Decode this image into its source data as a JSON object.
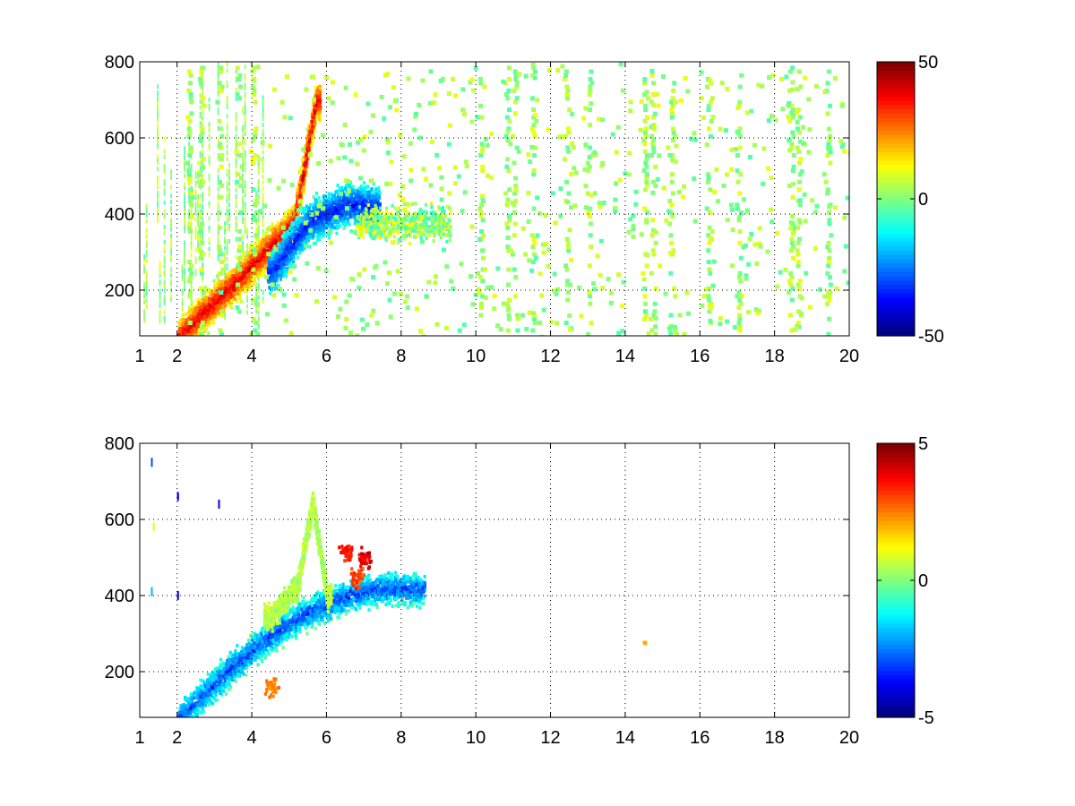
{
  "chart_data": [
    {
      "type": "heatmap",
      "title": "",
      "xlabel": "",
      "ylabel": "",
      "xlim": [
        1,
        20
      ],
      "ylim": [
        80,
        800
      ],
      "x_ticks": [
        1,
        2,
        4,
        6,
        8,
        10,
        12,
        14,
        16,
        18,
        20
      ],
      "y_ticks": [
        200,
        400,
        600,
        800
      ],
      "grid": true,
      "colormap": "jet",
      "colorbar": {
        "range": [
          -50,
          50
        ],
        "ticks": [
          -50,
          0,
          50
        ]
      },
      "pattern": {
        "ridge_x": [
          2.0,
          3.5,
          4.5,
          5.1,
          5.7
        ],
        "ridge_y": [
          80,
          220,
          320,
          380,
          700
        ],
        "ridge_peak_value": 40,
        "counter_ridge_x": [
          4.5,
          5.5,
          6.5,
          7.3
        ],
        "counter_ridge_y": [
          250,
          380,
          430,
          420
        ],
        "counter_ridge_value": -35,
        "scatter_stripes_x": [
          2.3,
          2.6,
          3.1,
          3.6,
          4.0,
          10.1,
          10.8,
          11.0,
          11.5,
          12.4,
          13.0,
          14.5,
          14.7,
          15.2,
          16.2,
          17.0,
          18.4,
          18.6,
          19.4
        ]
      }
    },
    {
      "type": "heatmap",
      "title": "",
      "xlabel": "",
      "ylabel": "",
      "xlim": [
        1,
        20
      ],
      "ylim": [
        80,
        800
      ],
      "x_ticks": [
        1,
        2,
        4,
        6,
        8,
        10,
        12,
        14,
        16,
        18,
        20
      ],
      "y_ticks": [
        200,
        400,
        600,
        800
      ],
      "grid": true,
      "colormap": "jet",
      "colorbar": {
        "range": [
          -5,
          5
        ],
        "ticks": [
          -5,
          0,
          5
        ]
      },
      "pattern": {
        "band_x": [
          2.0,
          3.5,
          4.5,
          5.5,
          6.5,
          7.2,
          8.5
        ],
        "band_y": [
          80,
          220,
          300,
          360,
          400,
          420,
          420
        ],
        "band_value": -3,
        "upper_branch_x": [
          4.5,
          5.2,
          5.6,
          6.0
        ],
        "upper_branch_y": [
          350,
          430,
          650,
          400
        ],
        "upper_branch_value": 0.5,
        "hot_spots": [
          [
            6.5,
            520,
            3.5
          ],
          [
            7.0,
            500,
            4
          ],
          [
            6.8,
            450,
            3
          ],
          [
            4.5,
            160,
            2.5
          ],
          [
            14.5,
            280,
            2
          ]
        ]
      }
    }
  ]
}
